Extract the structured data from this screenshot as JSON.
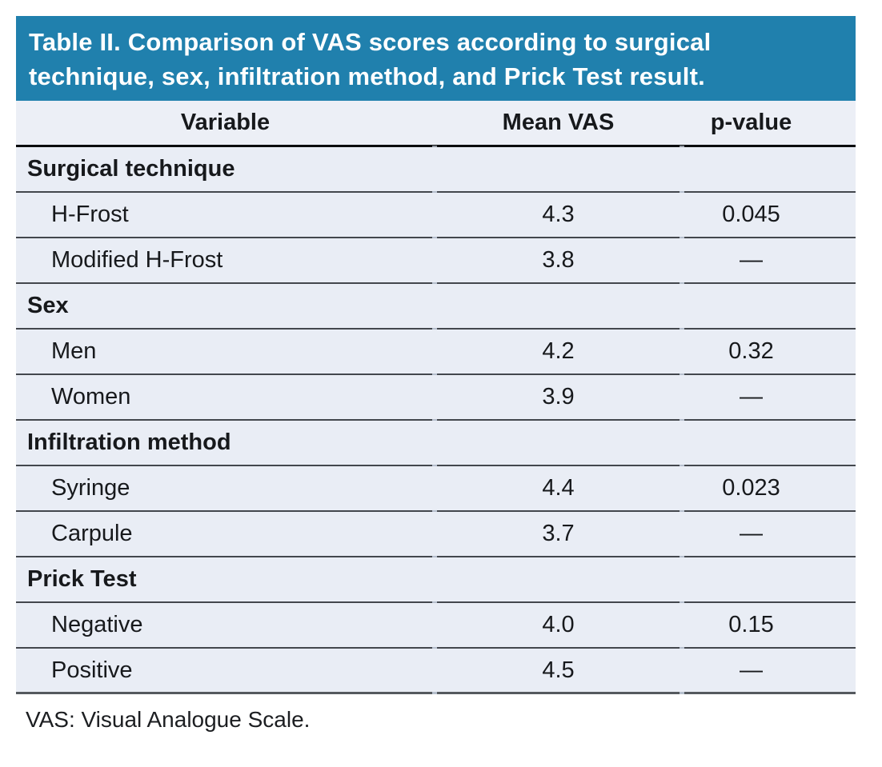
{
  "table": {
    "title": "Table II. Comparison of VAS scores according to surgical technique, sex, infiltration method, and Prick Test result.",
    "title_lines": [
      "Table II. Comparison of VAS scores according to surgical",
      "technique, sex, infiltration method, and Prick Test result."
    ],
    "columns": [
      "Variable",
      "Mean VAS",
      "p-value"
    ],
    "sections": [
      {
        "label": "Surgical technique",
        "rows": [
          {
            "variable": "H-Frost",
            "mean_vas": "4.3",
            "p_value": "0.045"
          },
          {
            "variable": "Modified H-Frost",
            "mean_vas": "3.8",
            "p_value": "—"
          }
        ]
      },
      {
        "label": "Sex",
        "rows": [
          {
            "variable": "Men",
            "mean_vas": "4.2",
            "p_value": "0.32"
          },
          {
            "variable": "Women",
            "mean_vas": "3.9",
            "p_value": "—"
          }
        ]
      },
      {
        "label": "Infiltration method",
        "rows": [
          {
            "variable": "Syringe",
            "mean_vas": "4.4",
            "p_value": "0.023"
          },
          {
            "variable": "Carpule",
            "mean_vas": "3.7",
            "p_value": "—"
          }
        ]
      },
      {
        "label": "Prick Test",
        "rows": [
          {
            "variable": "Negative",
            "mean_vas": "4.0",
            "p_value": "0.15"
          },
          {
            "variable": "Positive",
            "mean_vas": "4.5",
            "p_value": "—"
          }
        ]
      }
    ],
    "footnote": "VAS: Visual Analogue Scale.",
    "colors": {
      "title_bar_bg": "#2080AD",
      "title_text": "#FFFFFF",
      "row_bg": "#E9EDF5",
      "header_row_bg": "#ECEFF6",
      "row_rule": "#43474D",
      "header_rule": "#0A0C0E",
      "bottom_rule": "#55595E",
      "body_text": "#17191C"
    }
  },
  "chart_data": {
    "type": "table",
    "title": "Table II. Comparison of VAS scores according to surgical technique, sex, infiltration method, and Prick Test result.",
    "columns": [
      "Variable",
      "Mean VAS",
      "p-value"
    ],
    "rows": [
      [
        "Surgical technique",
        "",
        ""
      ],
      [
        "H-Frost",
        4.3,
        0.045
      ],
      [
        "Modified H-Frost",
        3.8,
        "—"
      ],
      [
        "Sex",
        "",
        ""
      ],
      [
        "Men",
        4.2,
        0.32
      ],
      [
        "Women",
        3.9,
        "—"
      ],
      [
        "Infiltration method",
        "",
        ""
      ],
      [
        "Syringe",
        4.4,
        0.023
      ],
      [
        "Carpule",
        3.7,
        "—"
      ],
      [
        "Prick Test",
        "",
        ""
      ],
      [
        "Negative",
        4.0,
        0.15
      ],
      [
        "Positive",
        4.5,
        "—"
      ]
    ],
    "footnote": "VAS: Visual Analogue Scale."
  }
}
